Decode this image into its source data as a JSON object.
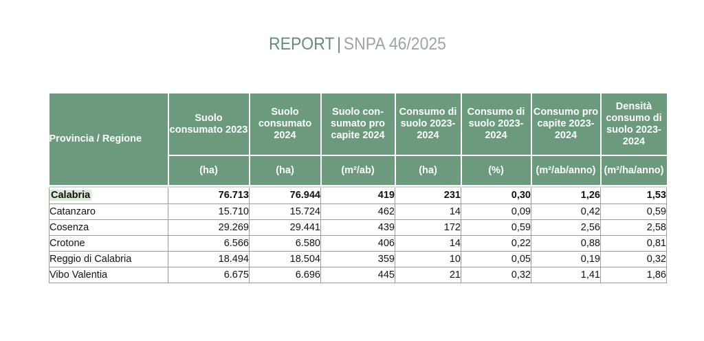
{
  "header": {
    "report": "REPORT",
    "separator": "|",
    "code": "SNPA 46/2025"
  },
  "table": {
    "columns": [
      {
        "title": "Provincia / Regione",
        "unit": ""
      },
      {
        "title": "Suolo consumato 2023",
        "unit": "(ha)"
      },
      {
        "title": "Suolo consumato 2024",
        "unit": "(ha)"
      },
      {
        "title": "Suolo con-sumato pro capite 2024",
        "unit": "(m²/ab)"
      },
      {
        "title": "Consumo di suolo 2023-2024",
        "unit": "(ha)"
      },
      {
        "title": "Consumo di suolo 2023-2024",
        "unit": "(%)"
      },
      {
        "title": "Consumo pro capite 2023-2024",
        "unit": "(m²/ab/anno)"
      },
      {
        "title": "Densità consumo di suolo 2023-2024",
        "unit": "(m²/ha/anno)"
      }
    ],
    "rows": [
      {
        "name": "Calabria",
        "values": [
          "76.713",
          "76.944",
          "419",
          "231",
          "0,30",
          "1,26",
          "1,53"
        ],
        "bold": true
      },
      {
        "name": "Catanzaro",
        "values": [
          "15.710",
          "15.724",
          "462",
          "14",
          "0,09",
          "0,42",
          "0,59"
        ]
      },
      {
        "name": "Cosenza",
        "values": [
          "29.269",
          "29.441",
          "439",
          "172",
          "0,59",
          "2,56",
          "2,58"
        ]
      },
      {
        "name": "Crotone",
        "values": [
          "6.566",
          "6.580",
          "406",
          "14",
          "0,22",
          "0,88",
          "0,81"
        ]
      },
      {
        "name": "Reggio di Calabria",
        "values": [
          "18.494",
          "18.504",
          "359",
          "10",
          "0,05",
          "0,19",
          "0,32"
        ]
      },
      {
        "name": "Vibo Valentia",
        "values": [
          "6.675",
          "6.696",
          "445",
          "21",
          "0,32",
          "1,41",
          "1,86"
        ]
      }
    ]
  }
}
